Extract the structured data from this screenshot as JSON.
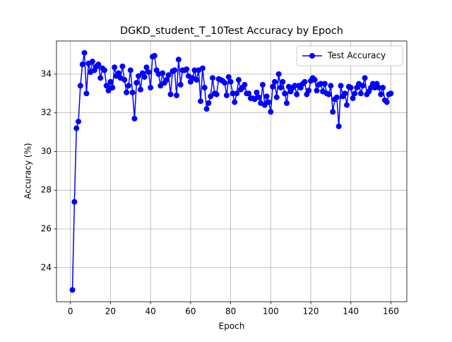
{
  "chart_data": {
    "type": "line",
    "title": "DGKD_student_T_10Test Accuracy by Epoch",
    "x_label": "Epoch",
    "y_label": "Accuracy (%)",
    "x": [
      1,
      2,
      3,
      4,
      5,
      6,
      7,
      8,
      9,
      10,
      11,
      12,
      13,
      14,
      15,
      16,
      17,
      18,
      19,
      20,
      21,
      22,
      23,
      24,
      25,
      26,
      27,
      28,
      29,
      30,
      31,
      32,
      33,
      34,
      35,
      36,
      37,
      38,
      39,
      40,
      41,
      42,
      43,
      44,
      45,
      46,
      47,
      48,
      49,
      50,
      51,
      52,
      53,
      54,
      55,
      56,
      57,
      58,
      59,
      60,
      61,
      62,
      63,
      64,
      65,
      66,
      67,
      68,
      69,
      70,
      71,
      72,
      73,
      74,
      75,
      76,
      77,
      78,
      79,
      80,
      81,
      82,
      83,
      84,
      85,
      86,
      87,
      88,
      89,
      90,
      91,
      92,
      93,
      94,
      95,
      96,
      97,
      98,
      99,
      100,
      101,
      102,
      103,
      104,
      105,
      106,
      107,
      108,
      109,
      110,
      111,
      112,
      113,
      114,
      115,
      116,
      117,
      118,
      119,
      120,
      121,
      122,
      123,
      124,
      125,
      126,
      127,
      128,
      129,
      130,
      131,
      132,
      133,
      134,
      135,
      136,
      137,
      138,
      139,
      140,
      141,
      142,
      143,
      144,
      145,
      146,
      147,
      148,
      149,
      150,
      151,
      152,
      153,
      154,
      155,
      156,
      157,
      158,
      159,
      160
    ],
    "series": [
      {
        "name": "Test Accuracy",
        "color": "#0000ff",
        "values": [
          22.85,
          27.4,
          31.2,
          31.55,
          33.4,
          34.5,
          35.1,
          33.0,
          34.55,
          34.1,
          34.65,
          34.2,
          34.4,
          34.5,
          33.8,
          34.3,
          34.2,
          33.4,
          33.15,
          33.6,
          33.3,
          34.35,
          33.9,
          34.05,
          33.8,
          34.4,
          33.7,
          33.05,
          33.4,
          34.2,
          33.05,
          31.7,
          33.55,
          33.9,
          33.2,
          34.05,
          33.85,
          34.35,
          34.1,
          33.3,
          34.9,
          34.95,
          34.2,
          34.0,
          33.4,
          34.05,
          33.55,
          33.7,
          33.95,
          32.95,
          34.15,
          34.2,
          32.9,
          34.75,
          33.45,
          34.2,
          34.2,
          34.25,
          33.9,
          33.6,
          33.8,
          34.2,
          33.7,
          34.2,
          32.6,
          34.3,
          33.3,
          32.2,
          32.5,
          32.85,
          33.8,
          33.0,
          32.95,
          33.75,
          33.7,
          33.65,
          33.55,
          32.9,
          33.85,
          33.6,
          33.0,
          32.55,
          33.0,
          33.7,
          33.2,
          33.3,
          33.45,
          33.0,
          33.0,
          32.75,
          32.75,
          32.7,
          33.05,
          32.8,
          32.5,
          33.45,
          32.4,
          32.85,
          32.55,
          32.05,
          33.35,
          33.6,
          32.8,
          34.0,
          33.3,
          33.6,
          33.0,
          32.5,
          33.35,
          33.1,
          33.3,
          33.4,
          32.95,
          33.4,
          33.3,
          33.5,
          33.6,
          32.95,
          33.15,
          33.65,
          33.8,
          33.7,
          33.15,
          33.45,
          33.5,
          33.1,
          33.5,
          33.0,
          32.95,
          33.4,
          32.05,
          32.7,
          32.8,
          31.3,
          33.4,
          32.85,
          33.0,
          32.4,
          33.35,
          33.3,
          32.75,
          33.0,
          33.3,
          33.5,
          33.0,
          33.4,
          33.8,
          32.95,
          33.1,
          33.3,
          33.5,
          33.3,
          33.5,
          33.3,
          32.95,
          33.3,
          32.65,
          32.55,
          32.95,
          33.0
        ]
      }
    ],
    "xlim": [
      -6.95,
      167.95
    ],
    "ylim": [
      22.24,
      35.71
    ],
    "xticks": [
      0,
      20,
      40,
      60,
      80,
      100,
      120,
      140,
      160
    ],
    "yticks": [
      24,
      26,
      28,
      30,
      32,
      34
    ],
    "grid": true,
    "legend": "upper-right"
  }
}
